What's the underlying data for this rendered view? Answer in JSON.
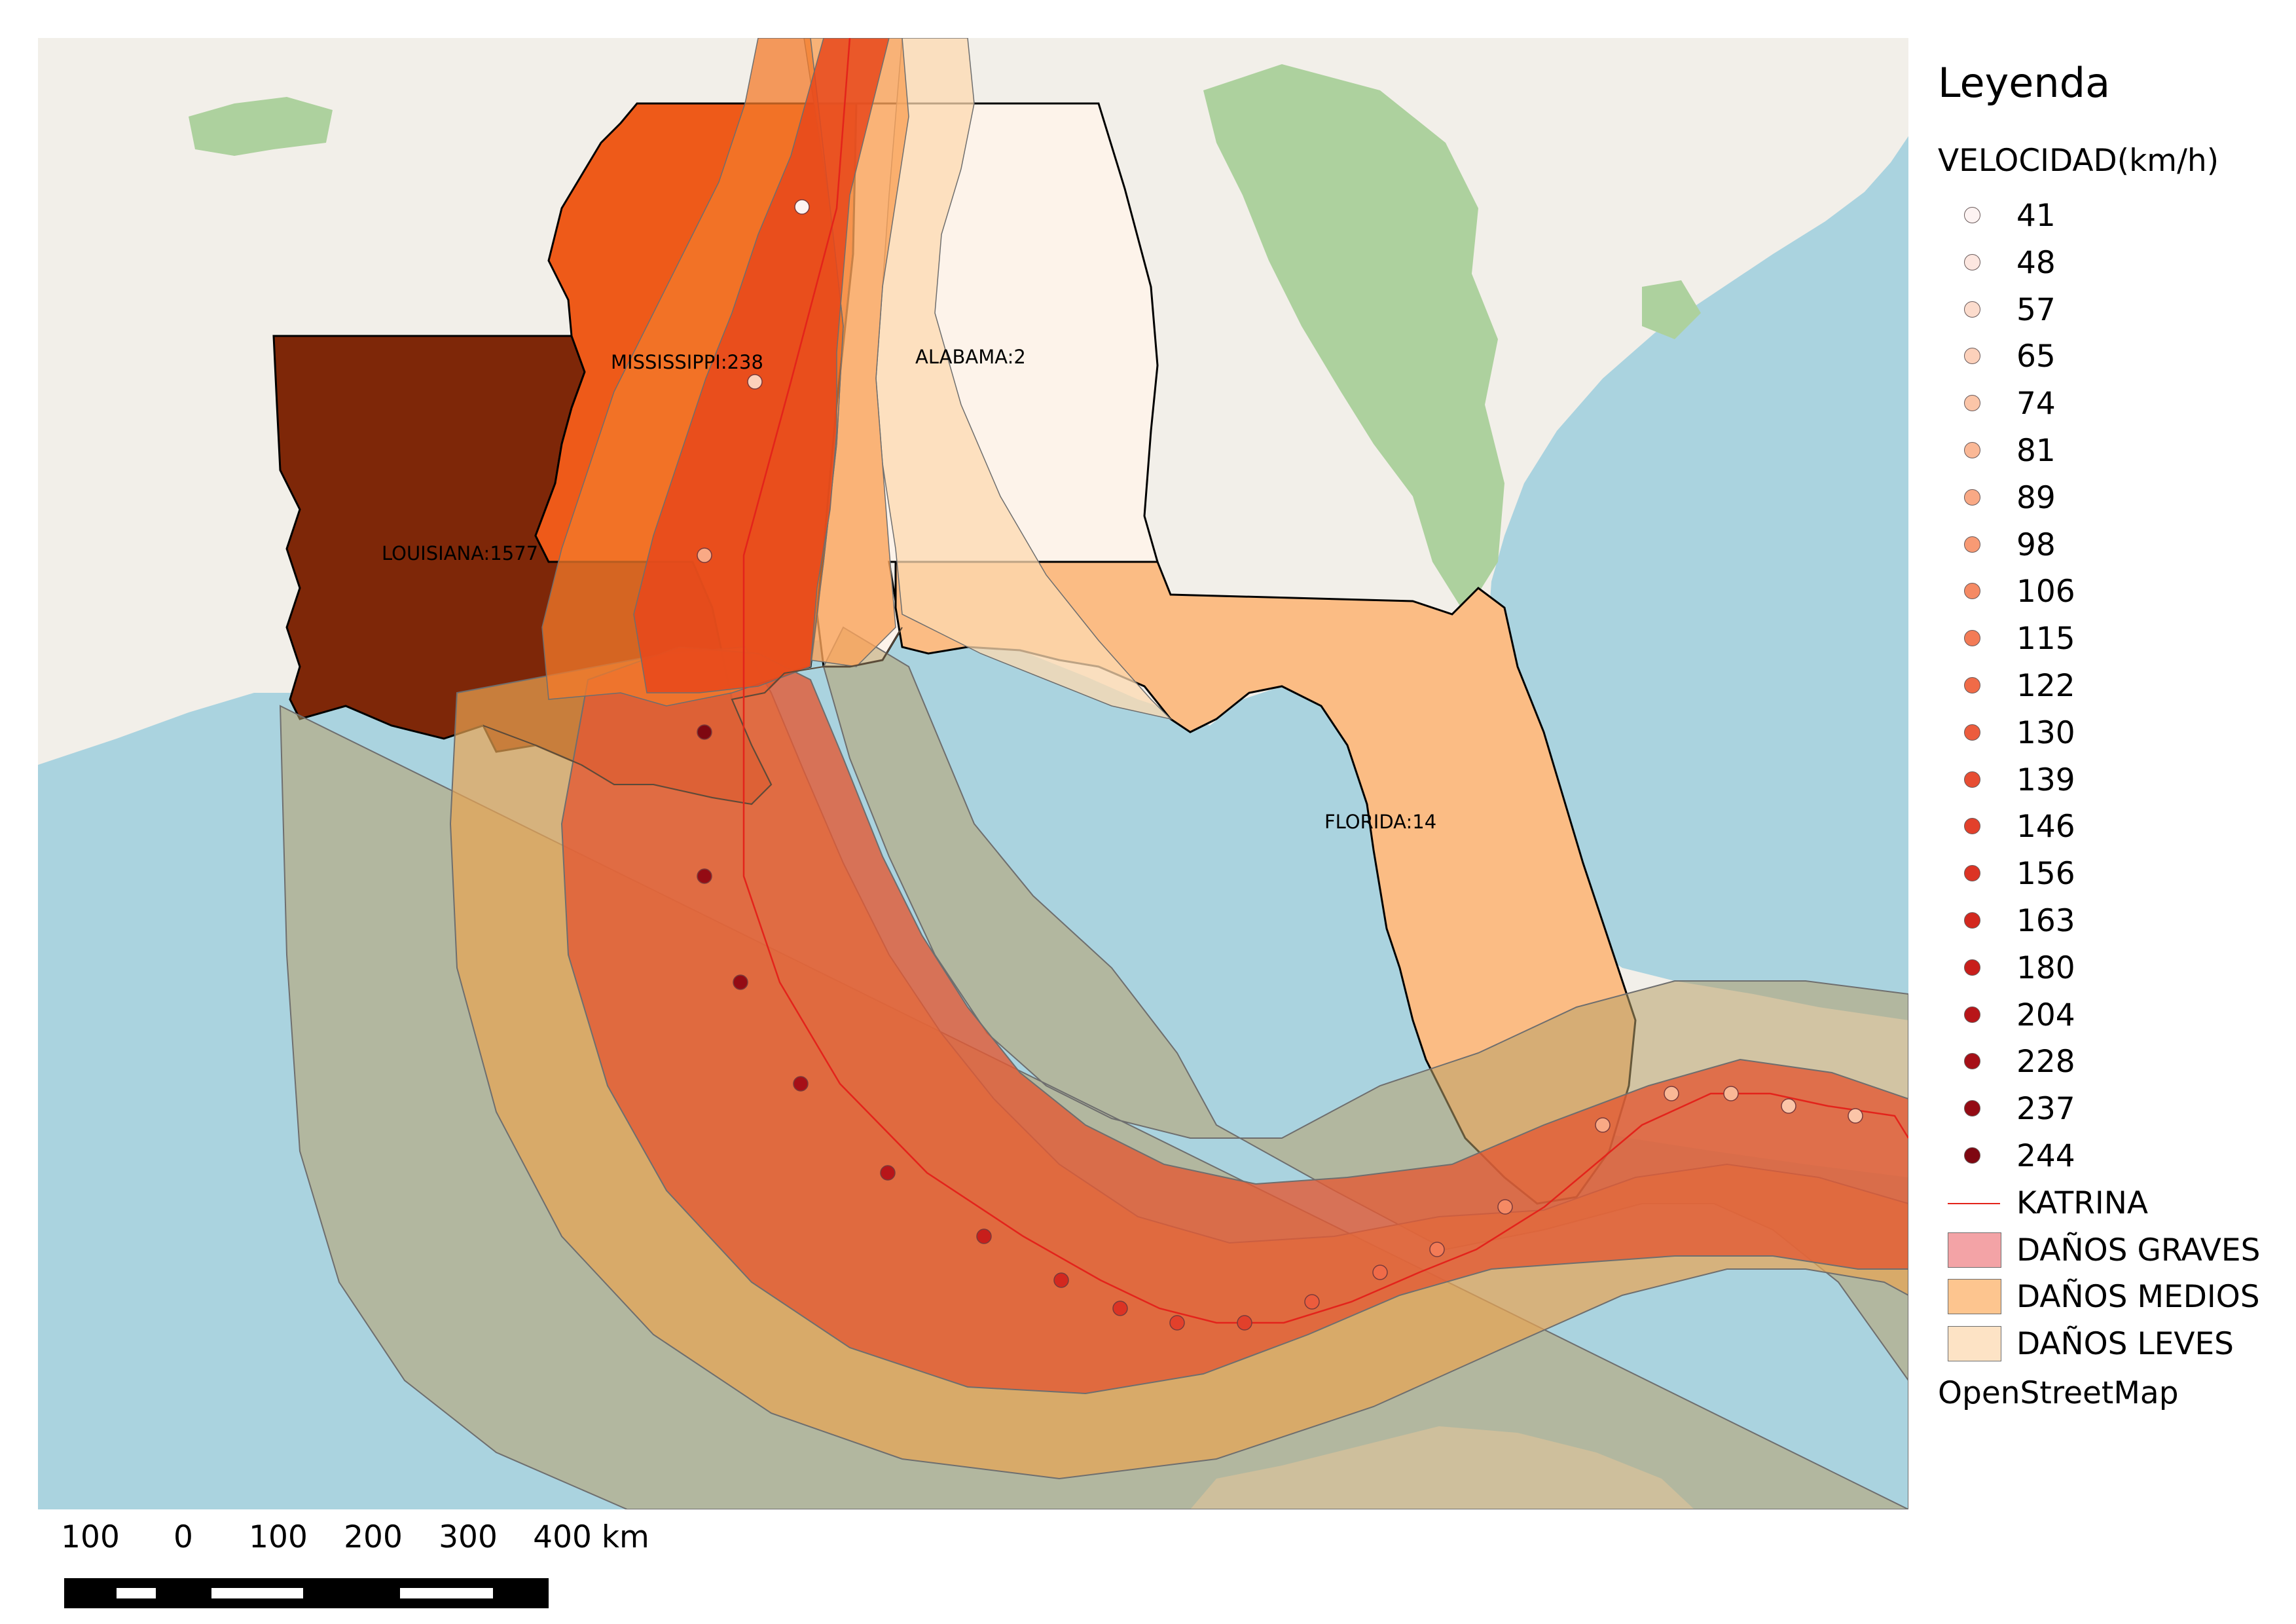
{
  "states": {
    "mississippi": "MISSISSIPPI:238",
    "alabama": "ALABAMA:2",
    "louisiana": "LOUISIANA:1577",
    "florida": "FLORIDA:14"
  },
  "legend": {
    "title": "Leyenda",
    "subtitle": "VELOCIDAD(km/h)",
    "speeds": [
      {
        "label": "41",
        "color": "#fdf3f2"
      },
      {
        "label": "48",
        "color": "#fde7e0"
      },
      {
        "label": "57",
        "color": "#fcdccd"
      },
      {
        "label": "65",
        "color": "#fcd1bb"
      },
      {
        "label": "74",
        "color": "#fbc5a8"
      },
      {
        "label": "81",
        "color": "#fab896"
      },
      {
        "label": "89",
        "color": "#f9a985"
      },
      {
        "label": "98",
        "color": "#f89a74"
      },
      {
        "label": "106",
        "color": "#f58a64"
      },
      {
        "label": "115",
        "color": "#f37b56"
      },
      {
        "label": "122",
        "color": "#f06b48"
      },
      {
        "label": "130",
        "color": "#ec5c3d"
      },
      {
        "label": "139",
        "color": "#e74d33"
      },
      {
        "label": "146",
        "color": "#e2402b"
      },
      {
        "label": "156",
        "color": "#dc3324"
      },
      {
        "label": "163",
        "color": "#d3281f"
      },
      {
        "label": "180",
        "color": "#c81e1b"
      },
      {
        "label": "204",
        "color": "#b81519"
      },
      {
        "label": "228",
        "color": "#a60f17"
      },
      {
        "label": "237",
        "color": "#940b14"
      },
      {
        "label": "244",
        "color": "#7f0711"
      }
    ],
    "track_label": "KATRINA",
    "track_color": "#e3231b",
    "damage": [
      {
        "label": "DAÑOS GRAVES",
        "color": "#f3a3a6"
      },
      {
        "label": "DAÑOS MEDIOS",
        "color": "#fdc58f"
      },
      {
        "label": "DAÑOS LEVES",
        "color": "#fde3c5"
      }
    ],
    "basemap": "OpenStreetMap"
  },
  "scalebar": {
    "labels": [
      "100",
      "0",
      "100",
      "200",
      "300",
      "400 km"
    ]
  }
}
